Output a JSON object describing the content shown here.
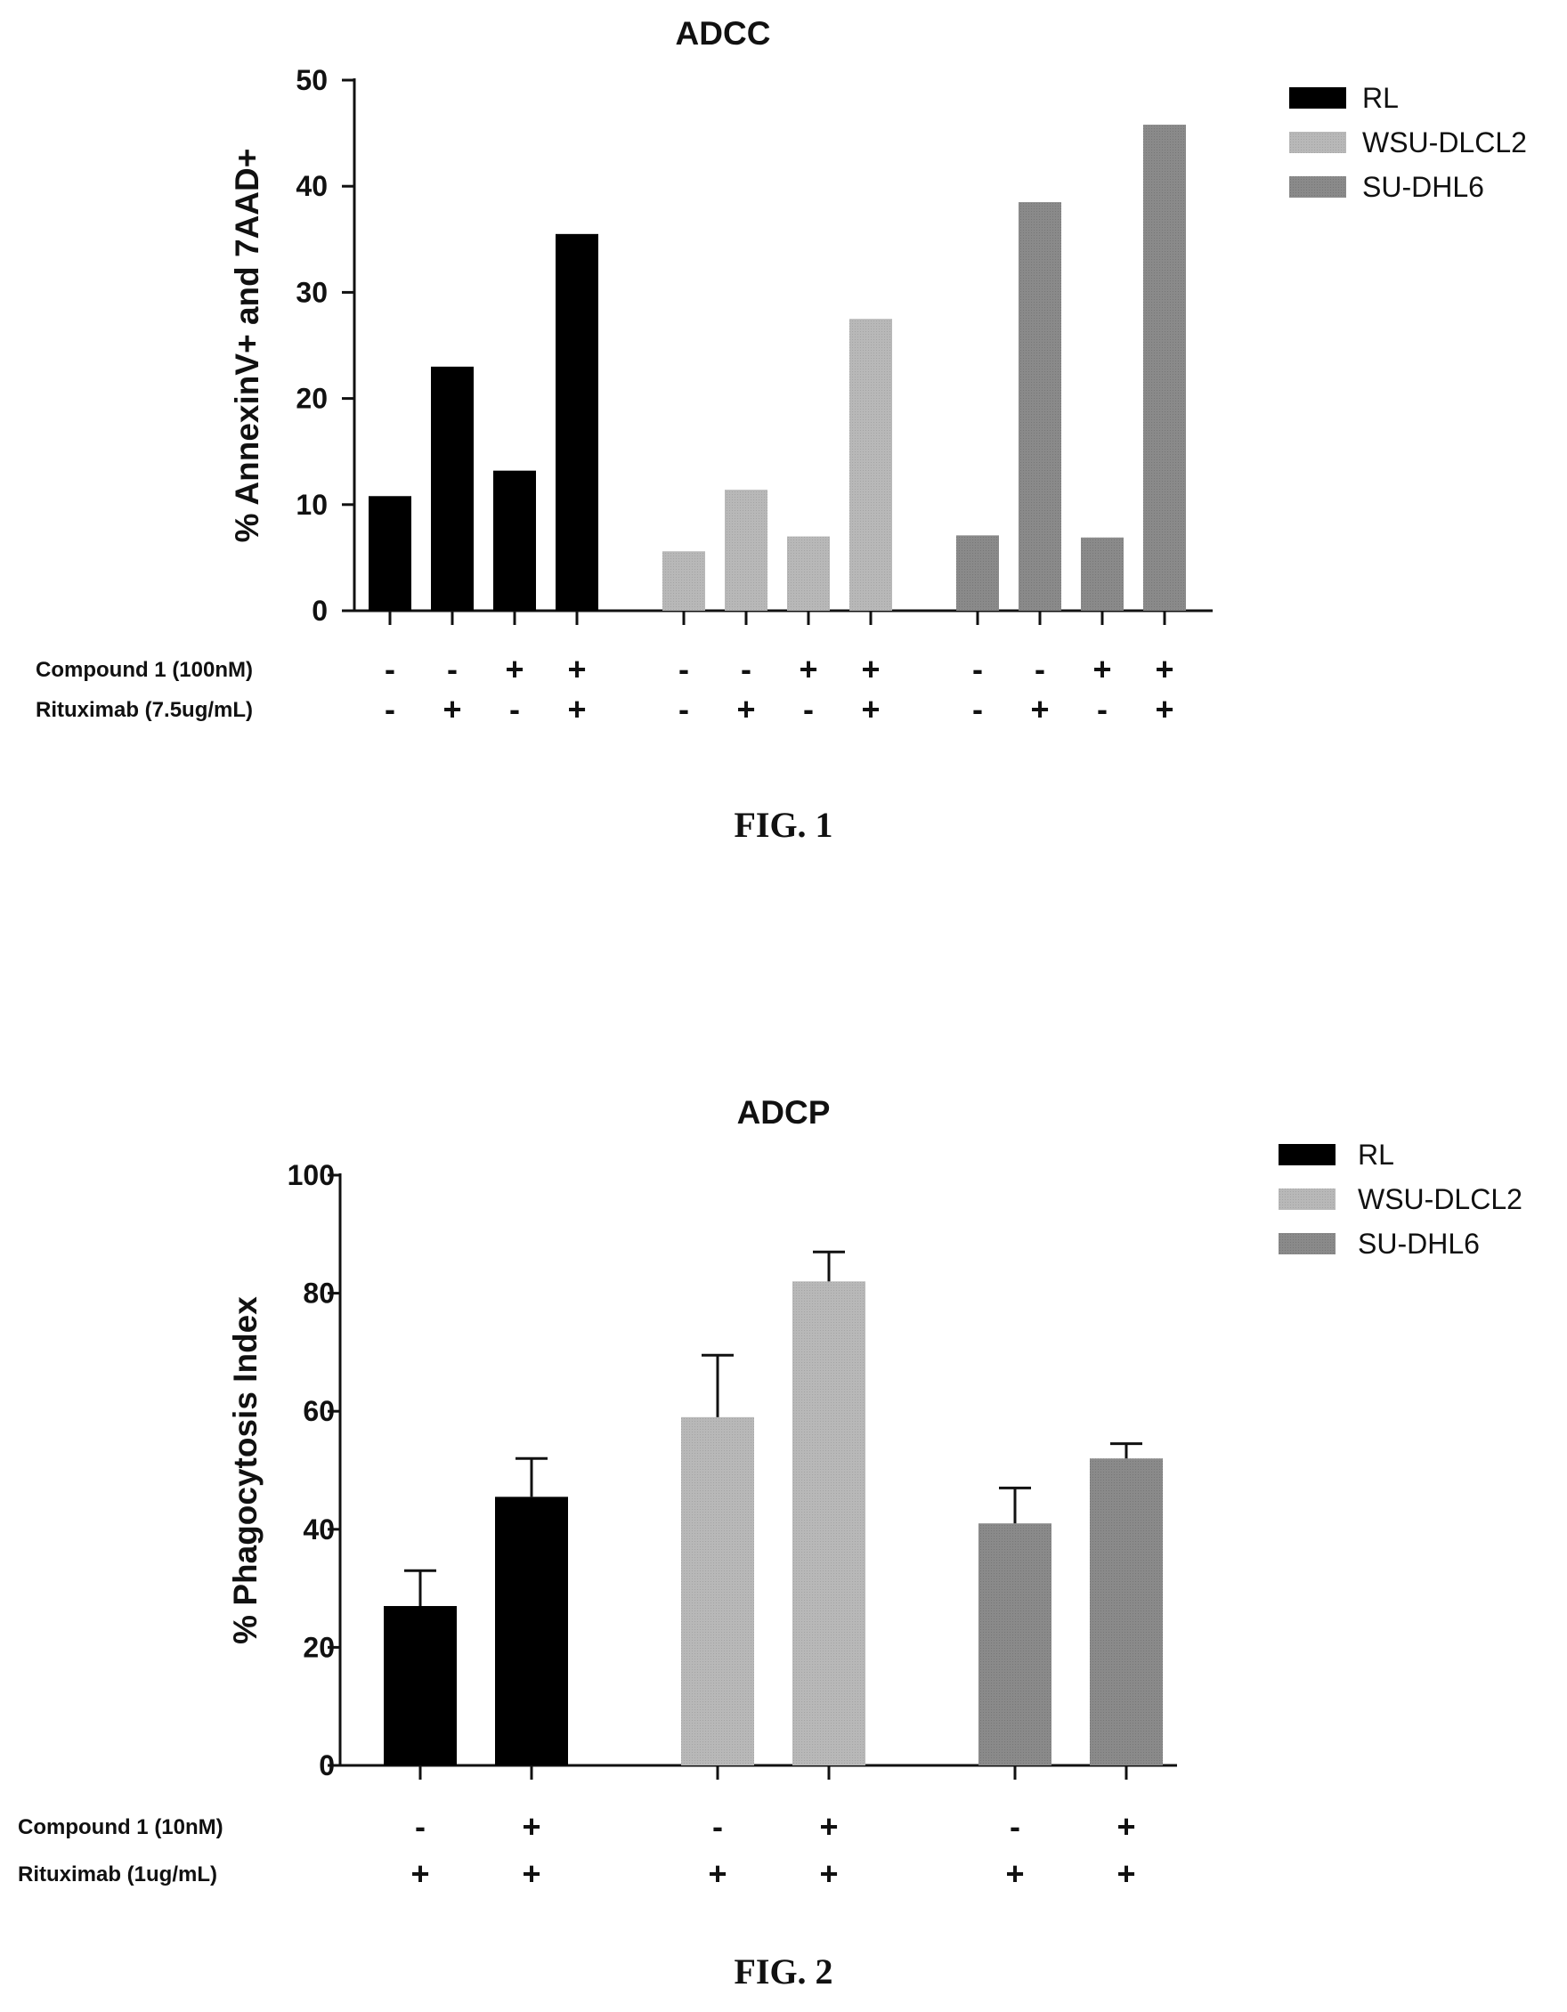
{
  "colors": {
    "RL": "#000000",
    "WSU-DLCL2": "#b8b8b8",
    "SU-DHL6": "#8a8a8a"
  },
  "chart_data": [
    {
      "type": "bar",
      "title": "ADCC",
      "ylabel": "% AnnexinV+ and 7AAD+",
      "ylim": [
        0,
        50
      ],
      "yticks": [
        "0",
        "10",
        "20",
        "30",
        "40",
        "50"
      ],
      "legend": [
        "RL",
        "WSU-DLCL2",
        "SU-DHL6"
      ],
      "legend_position": "top-right",
      "condition_rows": [
        {
          "label": "Compound 1 (100nM)",
          "signs": [
            "-",
            "-",
            "+",
            "+"
          ]
        },
        {
          "label": "Rituximab (7.5ug/mL)",
          "signs": [
            "-",
            "+",
            "-",
            "+"
          ]
        }
      ],
      "series": [
        {
          "name": "RL",
          "values": [
            10.8,
            23.0,
            13.2,
            35.5
          ]
        },
        {
          "name": "WSU-DLCL2",
          "values": [
            5.6,
            11.4,
            7.0,
            27.5
          ]
        },
        {
          "name": "SU-DHL6",
          "values": [
            7.1,
            38.5,
            6.9,
            45.8
          ]
        }
      ],
      "figure_label": "FIG. 1"
    },
    {
      "type": "bar",
      "title": "ADCP",
      "ylabel": "% Phagocytosis Index",
      "ylim": [
        0,
        100
      ],
      "yticks": [
        "0",
        "20",
        "40",
        "60",
        "80",
        "100"
      ],
      "legend": [
        "RL",
        "WSU-DLCL2",
        "SU-DHL6"
      ],
      "legend_position": "top-right",
      "condition_rows": [
        {
          "label": "Compound 1 (10nM)",
          "signs": [
            "-",
            "+"
          ]
        },
        {
          "label": "Rituximab (1ug/mL)",
          "signs": [
            "+",
            "+"
          ]
        }
      ],
      "series": [
        {
          "name": "RL",
          "values": [
            27,
            45.5
          ],
          "errors": [
            6,
            6.5
          ]
        },
        {
          "name": "WSU-DLCL2",
          "values": [
            59,
            82
          ],
          "errors": [
            10.5,
            5
          ]
        },
        {
          "name": "SU-DHL6",
          "values": [
            41,
            52
          ],
          "errors": [
            6,
            2.5
          ]
        }
      ],
      "figure_label": "FIG. 2"
    }
  ]
}
